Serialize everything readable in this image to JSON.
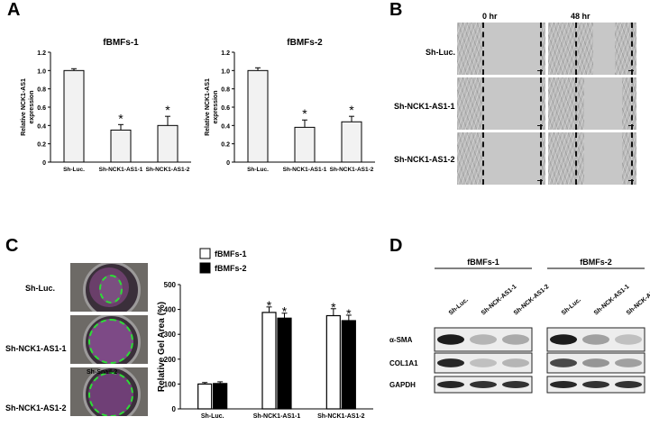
{
  "panels": {
    "a": "A",
    "b": "B",
    "c": "C",
    "d": "D"
  },
  "chart_a1": {
    "type": "bar",
    "title": "fBMFs-1",
    "ylabel": "Relative NCK1-AS1\nexpression",
    "categories": [
      "Sh-Luc.",
      "Sh-NCK1-AS1-1",
      "Sh-NCK1-AS1-2"
    ],
    "values": [
      1.0,
      0.35,
      0.4
    ],
    "errors": [
      0.02,
      0.06,
      0.1
    ],
    "significance": [
      "",
      "*",
      "*"
    ],
    "ylim": [
      0,
      1.2
    ],
    "yticks": [
      "0",
      "0.2",
      "0.4",
      "0.6",
      "0.8",
      "1.0",
      "1.2"
    ]
  },
  "chart_a2": {
    "type": "bar",
    "title": "fBMFs-2",
    "ylabel": "Relative NCK1-AS1\nexpression",
    "categories": [
      "Sh-Luc.",
      "Sh-NCK1-AS1-1",
      "Sh-NCK1-AS1-2"
    ],
    "values": [
      1.0,
      0.38,
      0.44
    ],
    "errors": [
      0.03,
      0.08,
      0.06
    ],
    "significance": [
      "",
      "*",
      "*"
    ],
    "ylim": [
      0,
      1.2
    ],
    "yticks": [
      "0",
      "0.2",
      "0.4",
      "0.6",
      "0.8",
      "1.0",
      "1.2"
    ]
  },
  "chart_data": {
    "type": "bar",
    "ylabel": "Relative Gel Area (%)",
    "categories": [
      "Sh-Luc.",
      "Sh-NCK1-AS1-1",
      "Sh-NCK1-AS1-2"
    ],
    "series": [
      {
        "name": "fBMFs-1",
        "values": [
          100,
          388,
          375
        ],
        "errors": [
          6,
          22,
          28
        ],
        "significance": [
          "",
          "*",
          "*"
        ]
      },
      {
        "name": "fBMFs-2",
        "values": [
          102,
          365,
          355
        ],
        "errors": [
          7,
          20,
          22
        ],
        "significance": [
          "",
          "*",
          "*"
        ]
      }
    ],
    "ylim": [
      0,
      500
    ],
    "yticks": [
      "0",
      "100",
      "200",
      "300",
      "400",
      "500"
    ],
    "legend": "top-left",
    "colors": {
      "fBMFs-1": "#ffffff",
      "fBMFs-2": "#000000"
    }
  },
  "panel_b": {
    "timepoints": [
      "0 hr",
      "48 hr"
    ],
    "rows": [
      "Sh-Luc.",
      "Sh-NCK1-AS1-1",
      "Sh-NCK1-AS1-2"
    ]
  },
  "panel_c": {
    "rows": [
      "Sh-Luc.",
      "Sh-NCK1-AS1-1",
      "Sh-NCK1-AS1-2"
    ],
    "photo_overlay": "Sh-Snail-2"
  },
  "panel_d": {
    "groups": [
      "fBMFs-1",
      "fBMFs-2"
    ],
    "lanes": [
      "Sh-Luc.",
      "Sh-NCK-AS1-1",
      "Sh-NCK-AS1-2"
    ],
    "proteins": [
      "α-SMA",
      "COL1A1",
      "GAPDH"
    ]
  }
}
